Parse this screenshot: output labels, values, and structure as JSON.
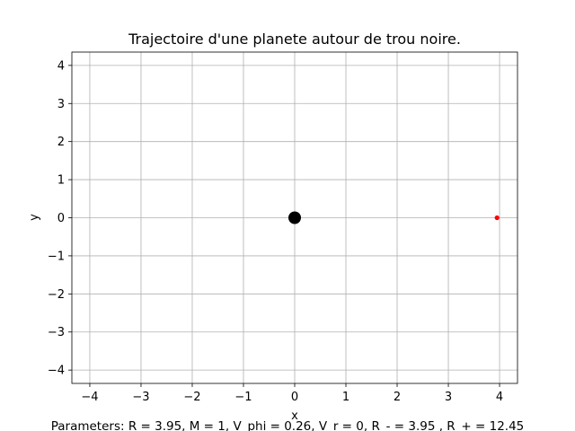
{
  "chart_data": {
    "type": "scatter",
    "title": "Trajectoire d'une planete autour de trou noire.",
    "xlabel": "x",
    "ylabel": "y",
    "xlim": [
      -4.35,
      4.35
    ],
    "ylim": [
      -4.35,
      4.35
    ],
    "xticks": [
      -4,
      -3,
      -2,
      -1,
      0,
      1,
      2,
      3,
      4
    ],
    "yticks": [
      -4,
      -3,
      -2,
      -1,
      0,
      1,
      2,
      3,
      4
    ],
    "xtick_labels": [
      "−4",
      "−3",
      "−2",
      "−1",
      "0",
      "1",
      "2",
      "3",
      "4"
    ],
    "ytick_labels": [
      "−4",
      "−3",
      "−2",
      "−1",
      "0",
      "1",
      "2",
      "3",
      "4"
    ],
    "grid": true,
    "series": [
      {
        "role": "black-hole",
        "x": [
          0
        ],
        "y": [
          0
        ],
        "color": "#000000",
        "marker": "large-circle"
      },
      {
        "role": "planet",
        "x": [
          3.95
        ],
        "y": [
          0
        ],
        "color": "#ff0000",
        "marker": "small-circle"
      }
    ]
  },
  "caption": "Parameters: R = 3.95, M = 1, V_phi = 0.26, V_r = 0, R_- = 3.95 , R_+ = 12.45",
  "colors": {
    "grid": "#b0b0b0",
    "axes": "#000000",
    "planet": "#ff0000",
    "black_hole": "#000000"
  }
}
